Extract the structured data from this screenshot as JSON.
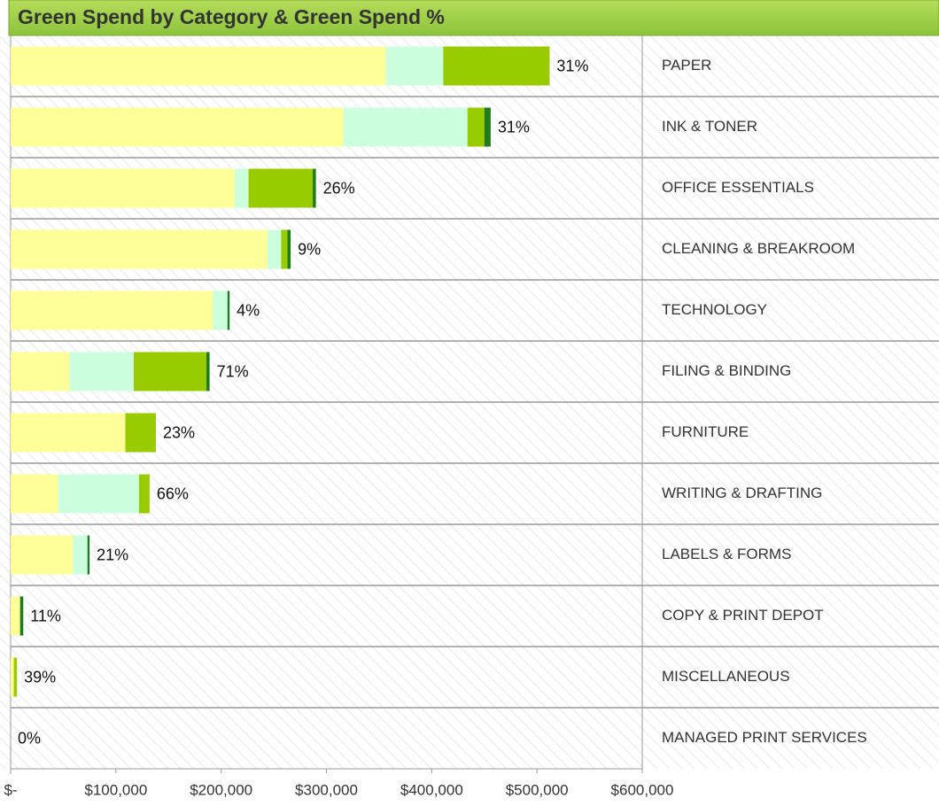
{
  "chart_data": {
    "type": "stacked_barh",
    "title": "Green Spend by Category & Green Spend %",
    "categories": [
      "PAPER",
      "INK & TONER",
      "OFFICE ESSENTIALS",
      "CLEANING & BREAKROOM",
      "TECHNOLOGY",
      "FILING & BINDING",
      "FURNITURE",
      "WRITING & DRAFTING",
      "LABELS & FORMS",
      "COPY & PRINT DEPOT",
      "MISCELLANEOUS",
      "MANAGED PRINT SERVICES"
    ],
    "series": [
      {
        "color": "#ffff99",
        "values": [
          356000,
          316000,
          213000,
          244000,
          192000,
          56000,
          109000,
          45000,
          59000,
          9000,
          3000,
          0
        ]
      },
      {
        "color": "#ccffdd",
        "values": [
          55000,
          118000,
          13000,
          13000,
          14000,
          61000,
          0,
          77000,
          14000,
          0,
          0,
          0
        ]
      },
      {
        "color": "#99cc00",
        "values": [
          101000,
          16000,
          61000,
          6000,
          0,
          69000,
          29000,
          10000,
          0,
          0,
          3000,
          0
        ]
      },
      {
        "color": "#1e7b1e",
        "values": [
          0,
          6000,
          3000,
          3000,
          2000,
          3000,
          0,
          0,
          2000,
          3000,
          0,
          0
        ]
      }
    ],
    "green_pct": [
      31,
      31,
      26,
      9,
      4,
      71,
      23,
      66,
      21,
      11,
      39,
      0
    ],
    "value_labels": [
      "31%",
      "31%",
      "26%",
      "9%",
      "4%",
      "71%",
      "23%",
      "66%",
      "21%",
      "11%",
      "39%",
      "0%"
    ],
    "xlim": [
      0,
      600000
    ],
    "xticks": [
      {
        "value": 0,
        "label": "$-"
      },
      {
        "value": 100000,
        "label": "$100,000"
      },
      {
        "value": 200000,
        "label": "$200,000"
      },
      {
        "value": 300000,
        "label": "$300,000"
      },
      {
        "value": 400000,
        "label": "$400,000"
      },
      {
        "value": 500000,
        "label": "$500,000"
      },
      {
        "value": 600000,
        "label": "$600,000"
      }
    ]
  }
}
